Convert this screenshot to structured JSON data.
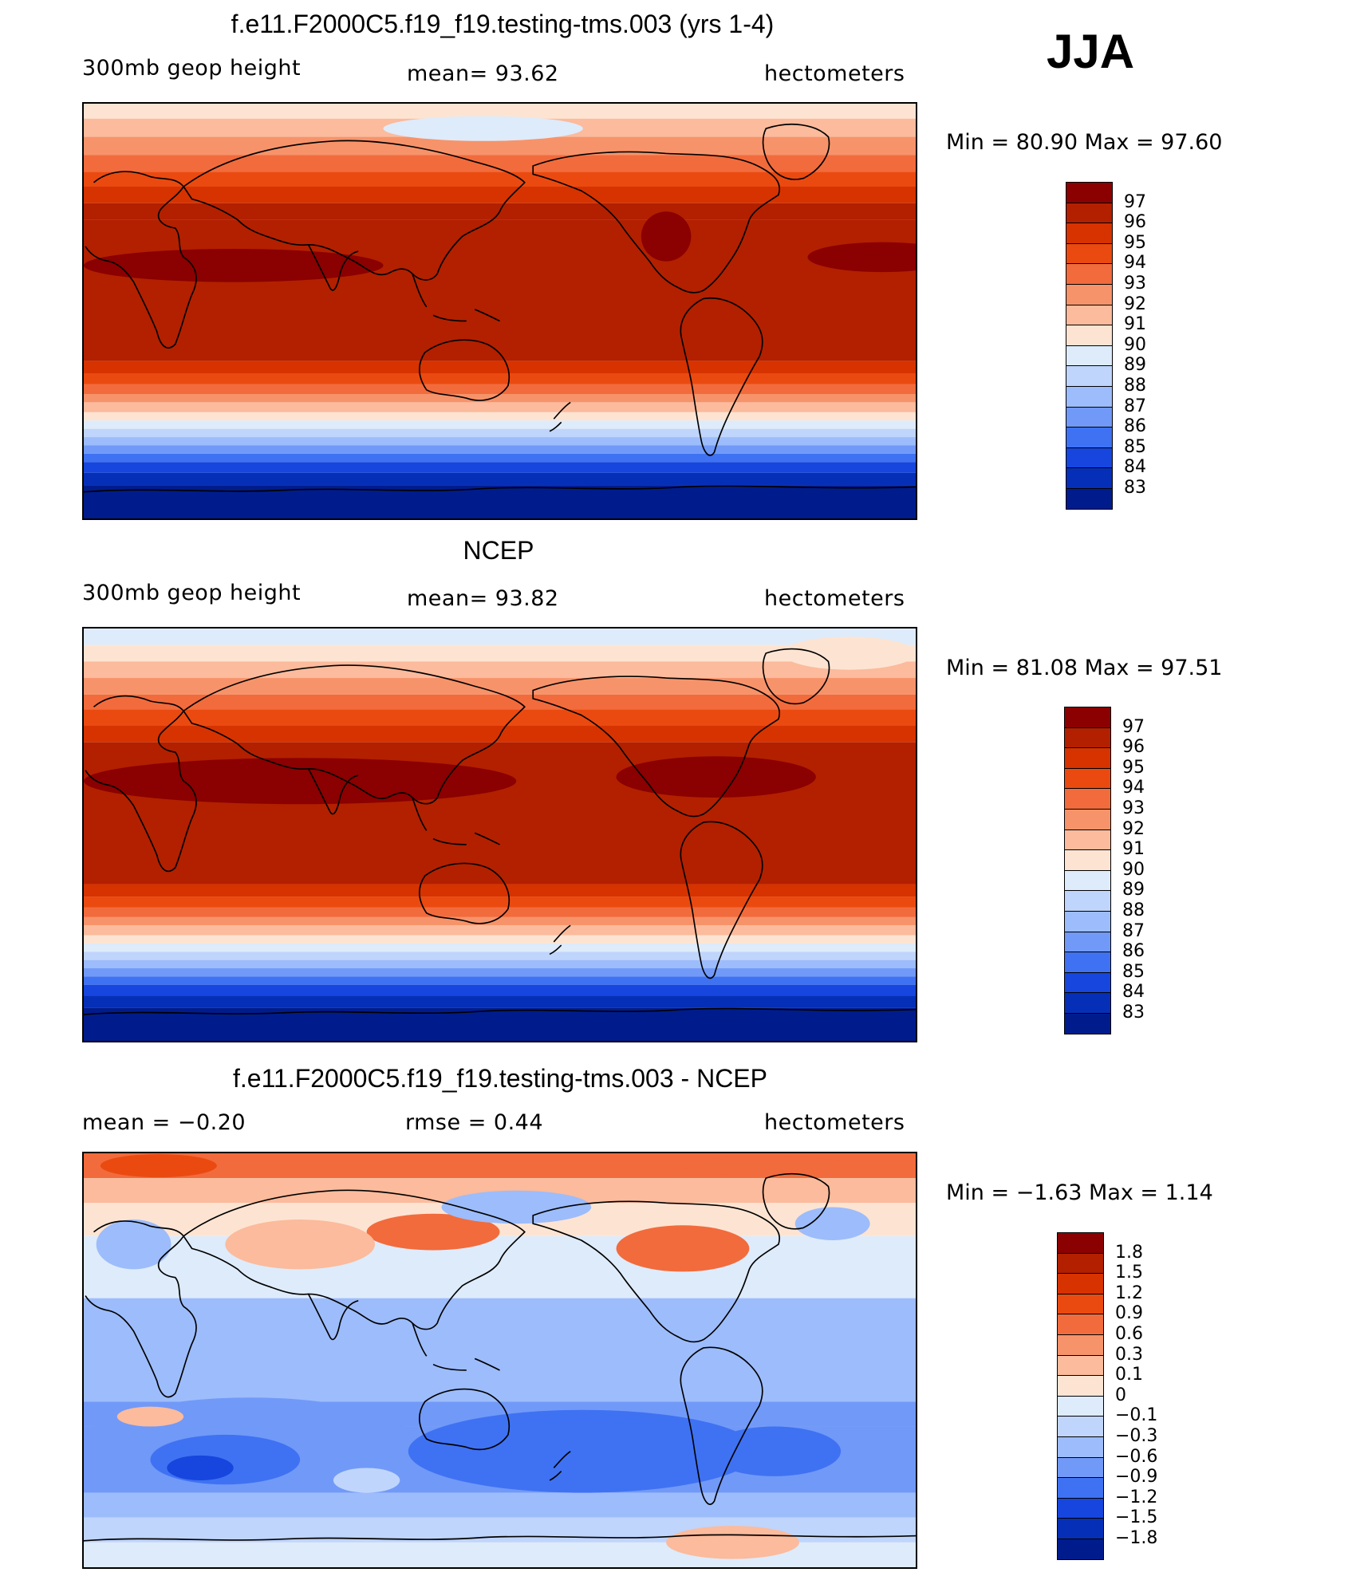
{
  "season": "JJA",
  "panels": [
    {
      "title": "f.e11.F2000C5.f19_f19.testing-tms.003 (yrs 1-4)",
      "left_label": "300mb geop height",
      "center_label": "mean=   93.62",
      "units": "hectometers",
      "minmax": "Min =   80.90 Max =   97.60"
    },
    {
      "title": "NCEP",
      "left_label": "300mb geop height",
      "center_label": "mean=   93.82",
      "units": "hectometers",
      "minmax": "Min =   81.08 Max =   97.51"
    },
    {
      "title": "f.e11.F2000C5.f19_f19.testing-tms.003 - NCEP",
      "left_label": "mean =   −0.20",
      "center_label": "rmse =    0.44",
      "units": "hectometers",
      "minmax": "Min =  −1.63 Max =    1.14"
    }
  ],
  "colorbars": {
    "absolute": {
      "labels": [
        "97",
        "96",
        "95",
        "94",
        "93",
        "92",
        "91",
        "90",
        "89",
        "88",
        "87",
        "86",
        "85",
        "84",
        "83"
      ],
      "colors": [
        "#8b0000",
        "#b22000",
        "#d63300",
        "#ea4a10",
        "#f26b3c",
        "#f7936a",
        "#fbbb9c",
        "#fde4d2",
        "#deebfa",
        "#bfd5fb",
        "#9dbcfb",
        "#7199f8",
        "#3f72f2",
        "#1646dd",
        "#062fb8",
        "#001c8c"
      ]
    },
    "difference": {
      "labels": [
        "1.8",
        "1.5",
        "1.2",
        "0.9",
        "0.6",
        "0.3",
        "0.1",
        "0",
        "−0.1",
        "−0.3",
        "−0.6",
        "−0.9",
        "−1.2",
        "−1.5",
        "−1.8"
      ],
      "colors": [
        "#8b0000",
        "#b22000",
        "#d63300",
        "#ea4a10",
        "#f26b3c",
        "#f7936a",
        "#fbbb9c",
        "#fde4d2",
        "#deebfa",
        "#bfd5fb",
        "#9dbcfb",
        "#7199f8",
        "#3f72f2",
        "#1646dd",
        "#062fb8",
        "#001c8c"
      ]
    }
  }
}
